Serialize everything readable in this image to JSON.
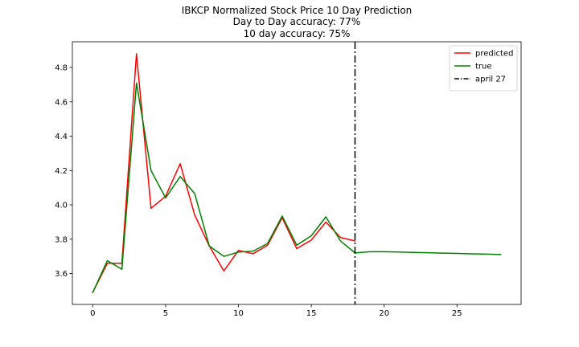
{
  "chart_data": {
    "type": "line",
    "title_lines": [
      "IBKCP Normalized Stock Price 10 Day Prediction",
      "Day to Day accuracy: 77%",
      "10 day accuracy: 75%"
    ],
    "xlabel": "",
    "ylabel": "",
    "xlim": [
      -1.4,
      29.4
    ],
    "ylim": [
      3.42,
      4.95
    ],
    "x_ticks": [
      0,
      5,
      10,
      15,
      20,
      25
    ],
    "y_ticks": [
      3.6,
      3.8,
      4.0,
      4.2,
      4.4,
      4.6,
      4.8
    ],
    "y_tick_labels": [
      "3.6",
      "3.8",
      "4.0",
      "4.2",
      "4.4",
      "4.6",
      "4.8"
    ],
    "grid": false,
    "legend_position": "top-right",
    "series": [
      {
        "name": "predicted",
        "color": "#ff0000",
        "x": [
          0,
          1,
          2,
          3,
          4,
          5,
          6,
          7,
          8,
          9,
          10,
          11,
          12,
          13,
          14,
          15,
          16,
          17,
          18
        ],
        "y": [
          3.49,
          3.66,
          3.66,
          4.88,
          3.98,
          4.05,
          4.24,
          3.94,
          3.76,
          3.615,
          3.735,
          3.715,
          3.765,
          3.925,
          3.745,
          3.795,
          3.9,
          3.81,
          3.79
        ]
      },
      {
        "name": "true",
        "color": "#008000",
        "x": [
          0,
          1,
          2,
          3,
          4,
          5,
          6,
          7,
          8,
          9,
          10,
          11,
          12,
          13,
          14,
          15,
          16,
          17,
          18,
          19,
          20,
          21,
          22,
          23,
          24,
          25,
          26,
          27,
          28
        ],
        "y": [
          3.49,
          3.675,
          3.625,
          4.71,
          4.2,
          4.04,
          4.165,
          4.065,
          3.76,
          3.7,
          3.725,
          3.73,
          3.775,
          3.935,
          3.765,
          3.82,
          3.93,
          3.79,
          3.72,
          3.727,
          3.727,
          3.725,
          3.723,
          3.721,
          3.719,
          3.717,
          3.715,
          3.713,
          3.711
        ]
      }
    ],
    "vlines": [
      {
        "name": "april 27",
        "x": 18,
        "color": "#000000",
        "style": "dashdot"
      }
    ]
  }
}
